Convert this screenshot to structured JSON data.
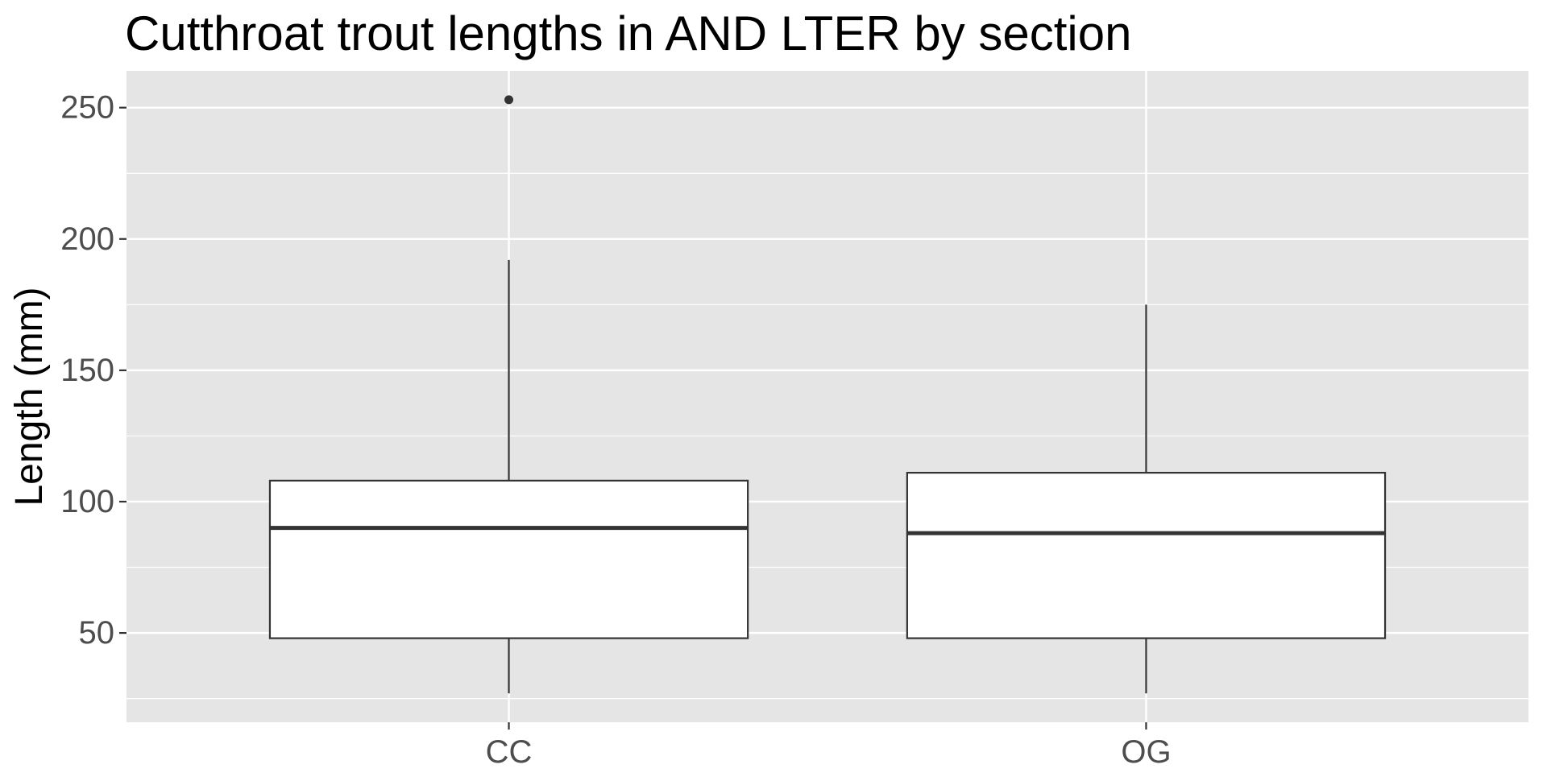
{
  "chart_data": {
    "type": "boxplot",
    "title": "Cutthroat trout lengths in AND LTER by section",
    "xlabel": "",
    "ylabel": "Length (mm)",
    "categories": [
      "CC",
      "OG"
    ],
    "boxes": [
      {
        "category": "CC",
        "whisker_low": 27,
        "q1": 48,
        "median": 90,
        "q3": 108,
        "whisker_high": 192,
        "outliers": [
          253
        ]
      },
      {
        "category": "OG",
        "whisker_low": 27,
        "q1": 48,
        "median": 88,
        "q3": 111,
        "whisker_high": 175,
        "outliers": []
      }
    ],
    "ylim": [
      16,
      264
    ],
    "yticks": [
      50,
      100,
      150,
      200,
      250
    ],
    "yticks_minor": [
      25,
      75,
      125,
      175,
      225
    ],
    "grid": true,
    "legend": "none",
    "colors": {
      "panel_background": "#E5E5E5",
      "grid": "#FFFFFF",
      "box_fill": "#FFFFFF",
      "box_line": "#333333",
      "tick_mark": "#333333",
      "tick_text": "#4D4D4D",
      "title_text": "#000000"
    }
  }
}
